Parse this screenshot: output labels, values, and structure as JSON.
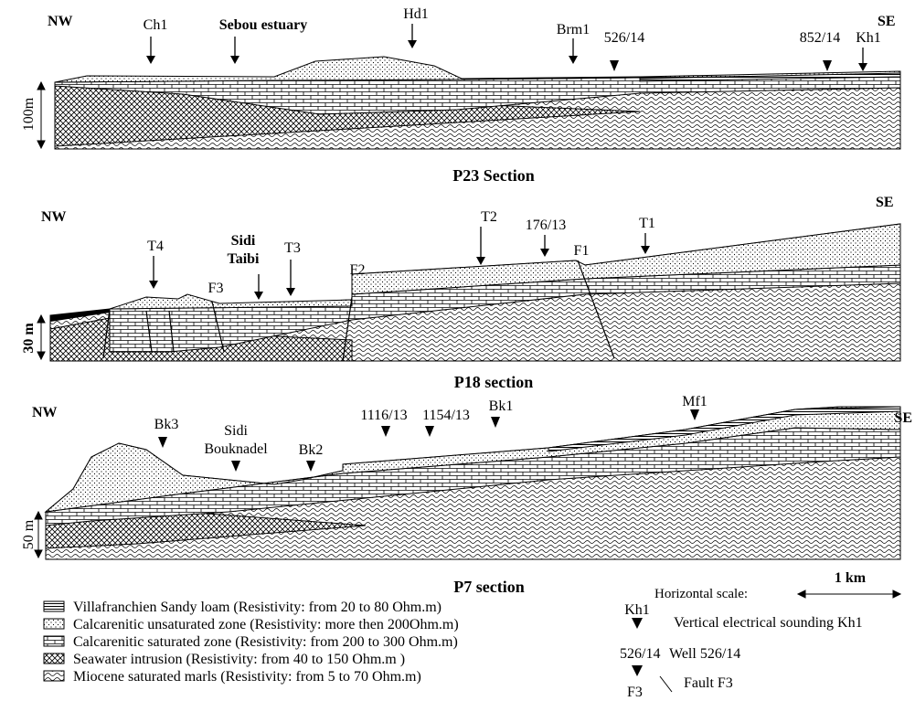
{
  "sections": [
    {
      "title": "P23 Section",
      "left": "NW",
      "right": "SE",
      "vertical_scale": "100m",
      "markers": [
        "Ch1",
        "Sebou estuary",
        "Hd1",
        "Brm1",
        "526/14",
        "852/14",
        "Kh1"
      ]
    },
    {
      "title": "P18 section",
      "left": "NW",
      "right": "SE",
      "vertical_scale": "30 m",
      "markers": [
        "T4",
        "T3",
        "T2",
        "176/13",
        "T1"
      ],
      "place": [
        "Sidi",
        "Taibi"
      ],
      "faults": [
        "F3",
        "F2",
        "F1"
      ]
    },
    {
      "title": "P7 section",
      "left": "NW",
      "right": "SE",
      "vertical_scale": "50 m",
      "markers": [
        "Bk3",
        "Bk2",
        "1116/13",
        "1154/13",
        "Bk1",
        "Mf1"
      ],
      "place": [
        "Sidi",
        "Bouknadel"
      ]
    }
  ],
  "legend": {
    "layers": [
      "Villafranchien Sandy loam (Resistivity: from 20 to 80 Ohm.m)",
      "Calcarenitic unsaturated zone (Resistivity: more then 200Ohm.m)",
      "Calcarenitic saturated zone (Resistivity: from 200 to 300 Ohm.m)",
      "Seawater intrusion (Resistivity: from 40 to 150 Ohm.m )",
      "Miocene saturated marls (Resistivity: from 5 to 70 Ohm.m)"
    ],
    "horizontal_scale": "Horizontal scale:",
    "scale_length": "1 km",
    "sounding": {
      "symbol": "Kh1",
      "label": "Vertical electrical sounding Kh1"
    },
    "well": {
      "symbol": "526/14",
      "label": "Well 526/14"
    },
    "fault": {
      "symbol": "F3",
      "label": "Fault F3"
    }
  }
}
